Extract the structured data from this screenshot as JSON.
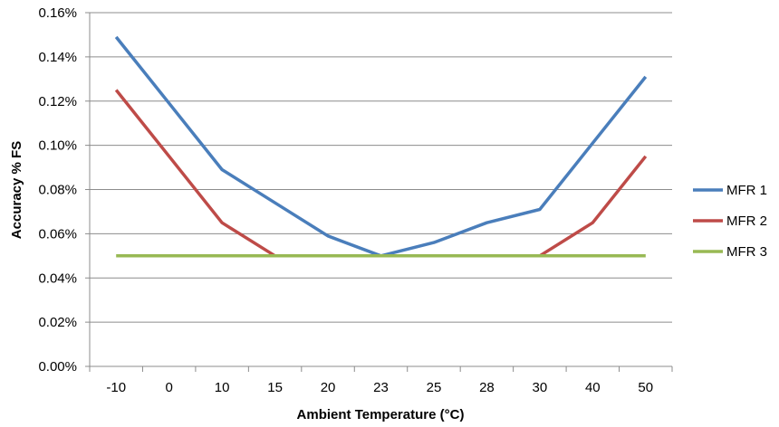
{
  "chart_data": {
    "type": "line",
    "title": "",
    "xlabel": "Ambient Temperature (°C)",
    "ylabel": "Accuracy % FS",
    "categories": [
      "-10",
      "0",
      "10",
      "15",
      "20",
      "23",
      "25",
      "28",
      "30",
      "40",
      "50"
    ],
    "ylim": [
      0,
      0.16
    ],
    "yticks": [
      0,
      0.02,
      0.04,
      0.06,
      0.08,
      0.1,
      0.12,
      0.14,
      0.16
    ],
    "ytick_labels": [
      "0.00%",
      "0.02%",
      "0.04%",
      "0.06%",
      "0.08%",
      "0.10%",
      "0.12%",
      "0.14%",
      "0.16%"
    ],
    "grid": "horizontal",
    "legend_position": "right",
    "series": [
      {
        "name": "MFR 1",
        "color": "#4a7ebb",
        "values": [
          0.149,
          0.119,
          0.089,
          0.074,
          0.059,
          0.05,
          0.056,
          0.065,
          0.071,
          0.101,
          0.131
        ]
      },
      {
        "name": "MFR 2",
        "color": "#be4b48",
        "values": [
          0.125,
          0.095,
          0.065,
          0.05,
          0.05,
          0.05,
          0.05,
          0.05,
          0.05,
          0.065,
          0.095
        ]
      },
      {
        "name": "MFR 3",
        "color": "#98b954",
        "values": [
          0.05,
          0.05,
          0.05,
          0.05,
          0.05,
          0.05,
          0.05,
          0.05,
          0.05,
          0.05,
          0.05
        ]
      }
    ]
  }
}
